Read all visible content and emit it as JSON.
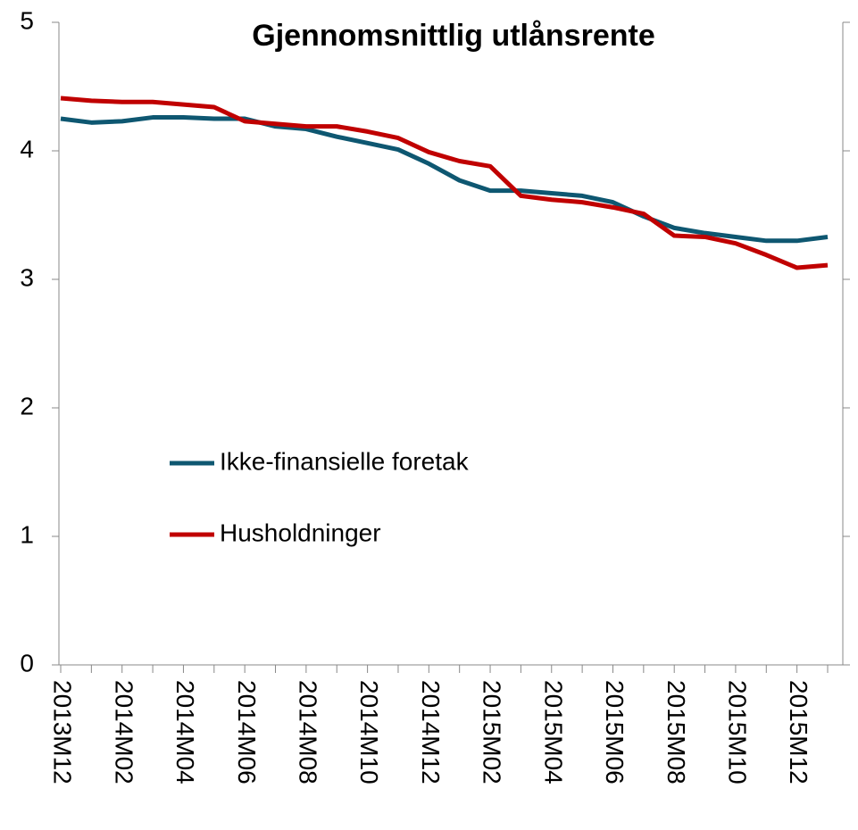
{
  "chart_data": {
    "type": "line",
    "title": "Gjennomsnittlig utlånsrente",
    "categories": [
      "2013M12",
      null,
      "2014M02",
      null,
      "2014M04",
      null,
      "2014M06",
      null,
      "2014M08",
      null,
      "2014M10",
      null,
      "2014M12",
      null,
      "2015M02",
      null,
      "2015M04",
      null,
      "2015M06",
      null,
      "2015M08",
      null,
      "2015M10",
      null,
      "2015M12",
      null
    ],
    "series": [
      {
        "name": "Ikke-finansielle foretak",
        "color": "#0e5771",
        "values": [
          4.25,
          4.22,
          4.23,
          4.26,
          4.26,
          4.25,
          4.25,
          4.19,
          4.17,
          4.11,
          4.06,
          4.01,
          3.9,
          3.77,
          3.69,
          3.69,
          3.67,
          3.65,
          3.6,
          3.49,
          3.4,
          3.36,
          3.33,
          3.3,
          3.3,
          3.33
        ]
      },
      {
        "name": "Husholdninger",
        "color": "#c00000",
        "values": [
          4.41,
          4.39,
          4.38,
          4.38,
          4.36,
          4.34,
          4.23,
          4.21,
          4.19,
          4.19,
          4.15,
          4.1,
          3.99,
          3.92,
          3.88,
          3.65,
          3.62,
          3.6,
          3.56,
          3.51,
          3.34,
          3.33,
          3.28,
          3.19,
          3.09,
          3.11
        ]
      }
    ],
    "ylim": [
      0,
      5
    ],
    "yticks": [
      0,
      1,
      2,
      3,
      4,
      5
    ],
    "grid": false
  }
}
